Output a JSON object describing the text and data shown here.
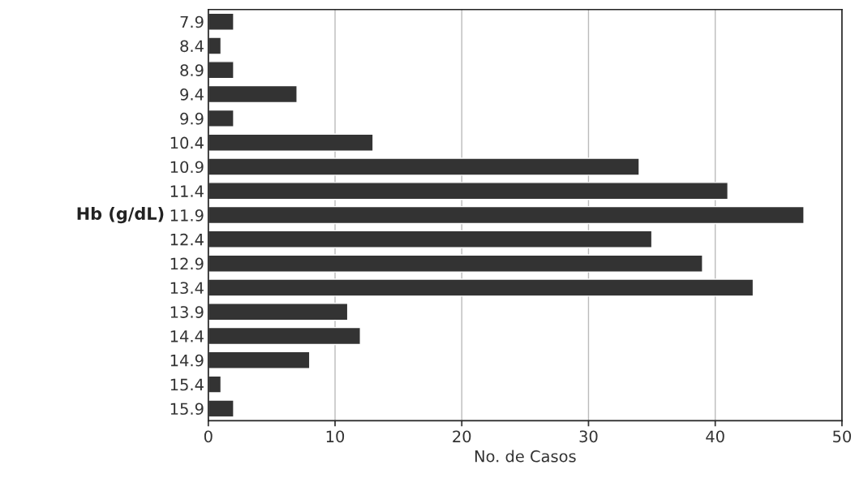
{
  "chart_data": {
    "type": "bar",
    "orientation": "horizontal",
    "xlabel": "No. de Casos",
    "ylabel": "Hb (g/dL)",
    "categories": [
      "7.9",
      "8.4",
      "8.9",
      "9.4",
      "9.9",
      "10.4",
      "10.9",
      "11.4",
      "11.9",
      "12.4",
      "12.9",
      "13.4",
      "13.9",
      "14.4",
      "14.9",
      "15.4",
      "15.9"
    ],
    "values": [
      2,
      1,
      2,
      7,
      2,
      13,
      34,
      41,
      47,
      35,
      39,
      43,
      11,
      12,
      8,
      1,
      2
    ],
    "color": "#333333",
    "xlim": [
      0,
      50
    ],
    "xticks": [
      0,
      10,
      20,
      30,
      40,
      50
    ],
    "grid": "x"
  }
}
